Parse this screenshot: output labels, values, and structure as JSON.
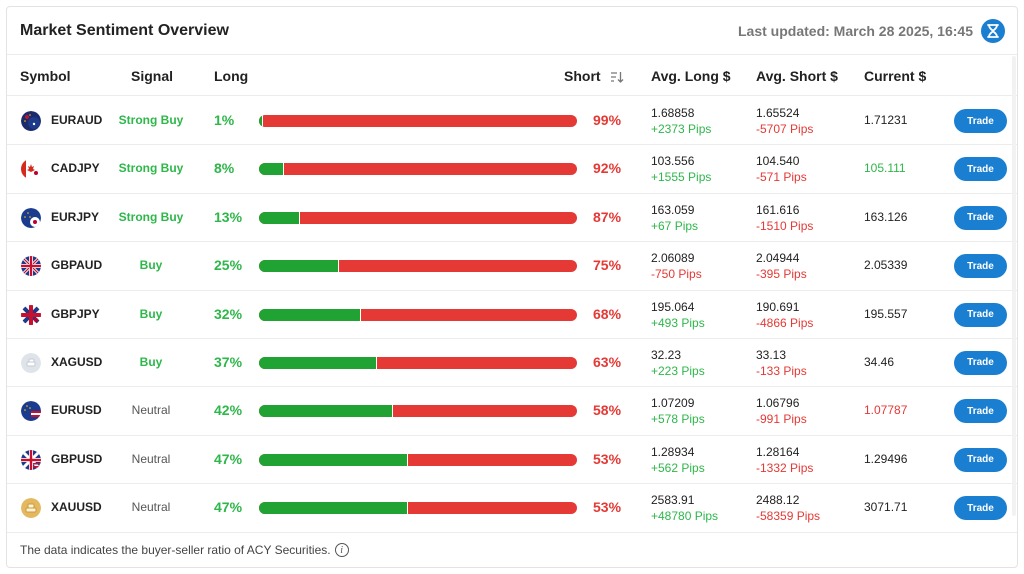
{
  "header": {
    "title": "Market Sentiment Overview",
    "updated": "Last updated: March 28 2025, 16:45"
  },
  "columns": {
    "symbol": "Symbol",
    "signal": "Signal",
    "long": "Long",
    "short": "Short",
    "avg_long": "Avg. Long $",
    "avg_short": "Avg. Short $",
    "current": "Current $"
  },
  "trade_label": "Trade",
  "colors": {
    "accent": "#1a7fd1",
    "long": "#21a334",
    "short": "#e53935"
  },
  "rows": [
    {
      "symbol": "EURAUD",
      "icon": "eur-aud-flag-icon",
      "signal": "Strong Buy",
      "signal_kind": "strong",
      "long": 1,
      "long_label": "1%",
      "short_label": "99%",
      "avg_long": "1.68858",
      "avg_long_pips": "+2373 Pips",
      "avg_long_sign": "pos",
      "avg_short": "1.65524",
      "avg_short_pips": "-5707 Pips",
      "avg_short_sign": "neg",
      "current": "1.71231",
      "current_kind": ""
    },
    {
      "symbol": "CADJPY",
      "icon": "cad-jpy-flag-icon",
      "signal": "Strong Buy",
      "signal_kind": "strong",
      "long": 8,
      "long_label": "8%",
      "short_label": "92%",
      "avg_long": "103.556",
      "avg_long_pips": "+1555 Pips",
      "avg_long_sign": "pos",
      "avg_short": "104.540",
      "avg_short_pips": "-571 Pips",
      "avg_short_sign": "neg",
      "current": "105.111",
      "current_kind": "up"
    },
    {
      "symbol": "EURJPY",
      "icon": "eur-jpy-flag-icon",
      "signal": "Strong Buy",
      "signal_kind": "strong",
      "long": 13,
      "long_label": "13%",
      "short_label": "87%",
      "avg_long": "163.059",
      "avg_long_pips": "+67 Pips",
      "avg_long_sign": "pos",
      "avg_short": "161.616",
      "avg_short_pips": "-1510 Pips",
      "avg_short_sign": "neg",
      "current": "163.126",
      "current_kind": ""
    },
    {
      "symbol": "GBPAUD",
      "icon": "gbp-aud-flag-icon",
      "signal": "Buy",
      "signal_kind": "buy",
      "long": 25,
      "long_label": "25%",
      "short_label": "75%",
      "avg_long": "2.06089",
      "avg_long_pips": "-750 Pips",
      "avg_long_sign": "neg",
      "avg_short": "2.04944",
      "avg_short_pips": "-395 Pips",
      "avg_short_sign": "neg",
      "current": "2.05339",
      "current_kind": ""
    },
    {
      "symbol": "GBPJPY",
      "icon": "gbp-jpy-flag-icon",
      "signal": "Buy",
      "signal_kind": "buy",
      "long": 32,
      "long_label": "32%",
      "short_label": "68%",
      "avg_long": "195.064",
      "avg_long_pips": "+493 Pips",
      "avg_long_sign": "pos",
      "avg_short": "190.691",
      "avg_short_pips": "-4866 Pips",
      "avg_short_sign": "neg",
      "current": "195.557",
      "current_kind": ""
    },
    {
      "symbol": "XAGUSD",
      "icon": "silver-icon",
      "signal": "Buy",
      "signal_kind": "buy",
      "long": 37,
      "long_label": "37%",
      "short_label": "63%",
      "avg_long": "32.23",
      "avg_long_pips": "+223 Pips",
      "avg_long_sign": "pos",
      "avg_short": "33.13",
      "avg_short_pips": "-133 Pips",
      "avg_short_sign": "neg",
      "current": "34.46",
      "current_kind": ""
    },
    {
      "symbol": "EURUSD",
      "icon": "eur-usd-flag-icon",
      "signal": "Neutral",
      "signal_kind": "neutral",
      "long": 42,
      "long_label": "42%",
      "short_label": "58%",
      "avg_long": "1.07209",
      "avg_long_pips": "+578 Pips",
      "avg_long_sign": "pos",
      "avg_short": "1.06796",
      "avg_short_pips": "-991 Pips",
      "avg_short_sign": "neg",
      "current": "1.07787",
      "current_kind": "down"
    },
    {
      "symbol": "GBPUSD",
      "icon": "gbp-usd-flag-icon",
      "signal": "Neutral",
      "signal_kind": "neutral",
      "long": 47,
      "long_label": "47%",
      "short_label": "53%",
      "avg_long": "1.28934",
      "avg_long_pips": "+562 Pips",
      "avg_long_sign": "pos",
      "avg_short": "1.28164",
      "avg_short_pips": "-1332 Pips",
      "avg_short_sign": "neg",
      "current": "1.29496",
      "current_kind": ""
    },
    {
      "symbol": "XAUUSD",
      "icon": "gold-icon",
      "signal": "Neutral",
      "signal_kind": "neutral",
      "long": 47,
      "long_label": "47%",
      "short_label": "53%",
      "avg_long": "2583.91",
      "avg_long_pips": "+48780 Pips",
      "avg_long_sign": "pos",
      "avg_short": "2488.12",
      "avg_short_pips": "-58359 Pips",
      "avg_short_sign": "neg",
      "current": "3071.71",
      "current_kind": ""
    }
  ],
  "footer": {
    "note": "The data indicates the buyer-seller ratio of ACY Securities."
  }
}
